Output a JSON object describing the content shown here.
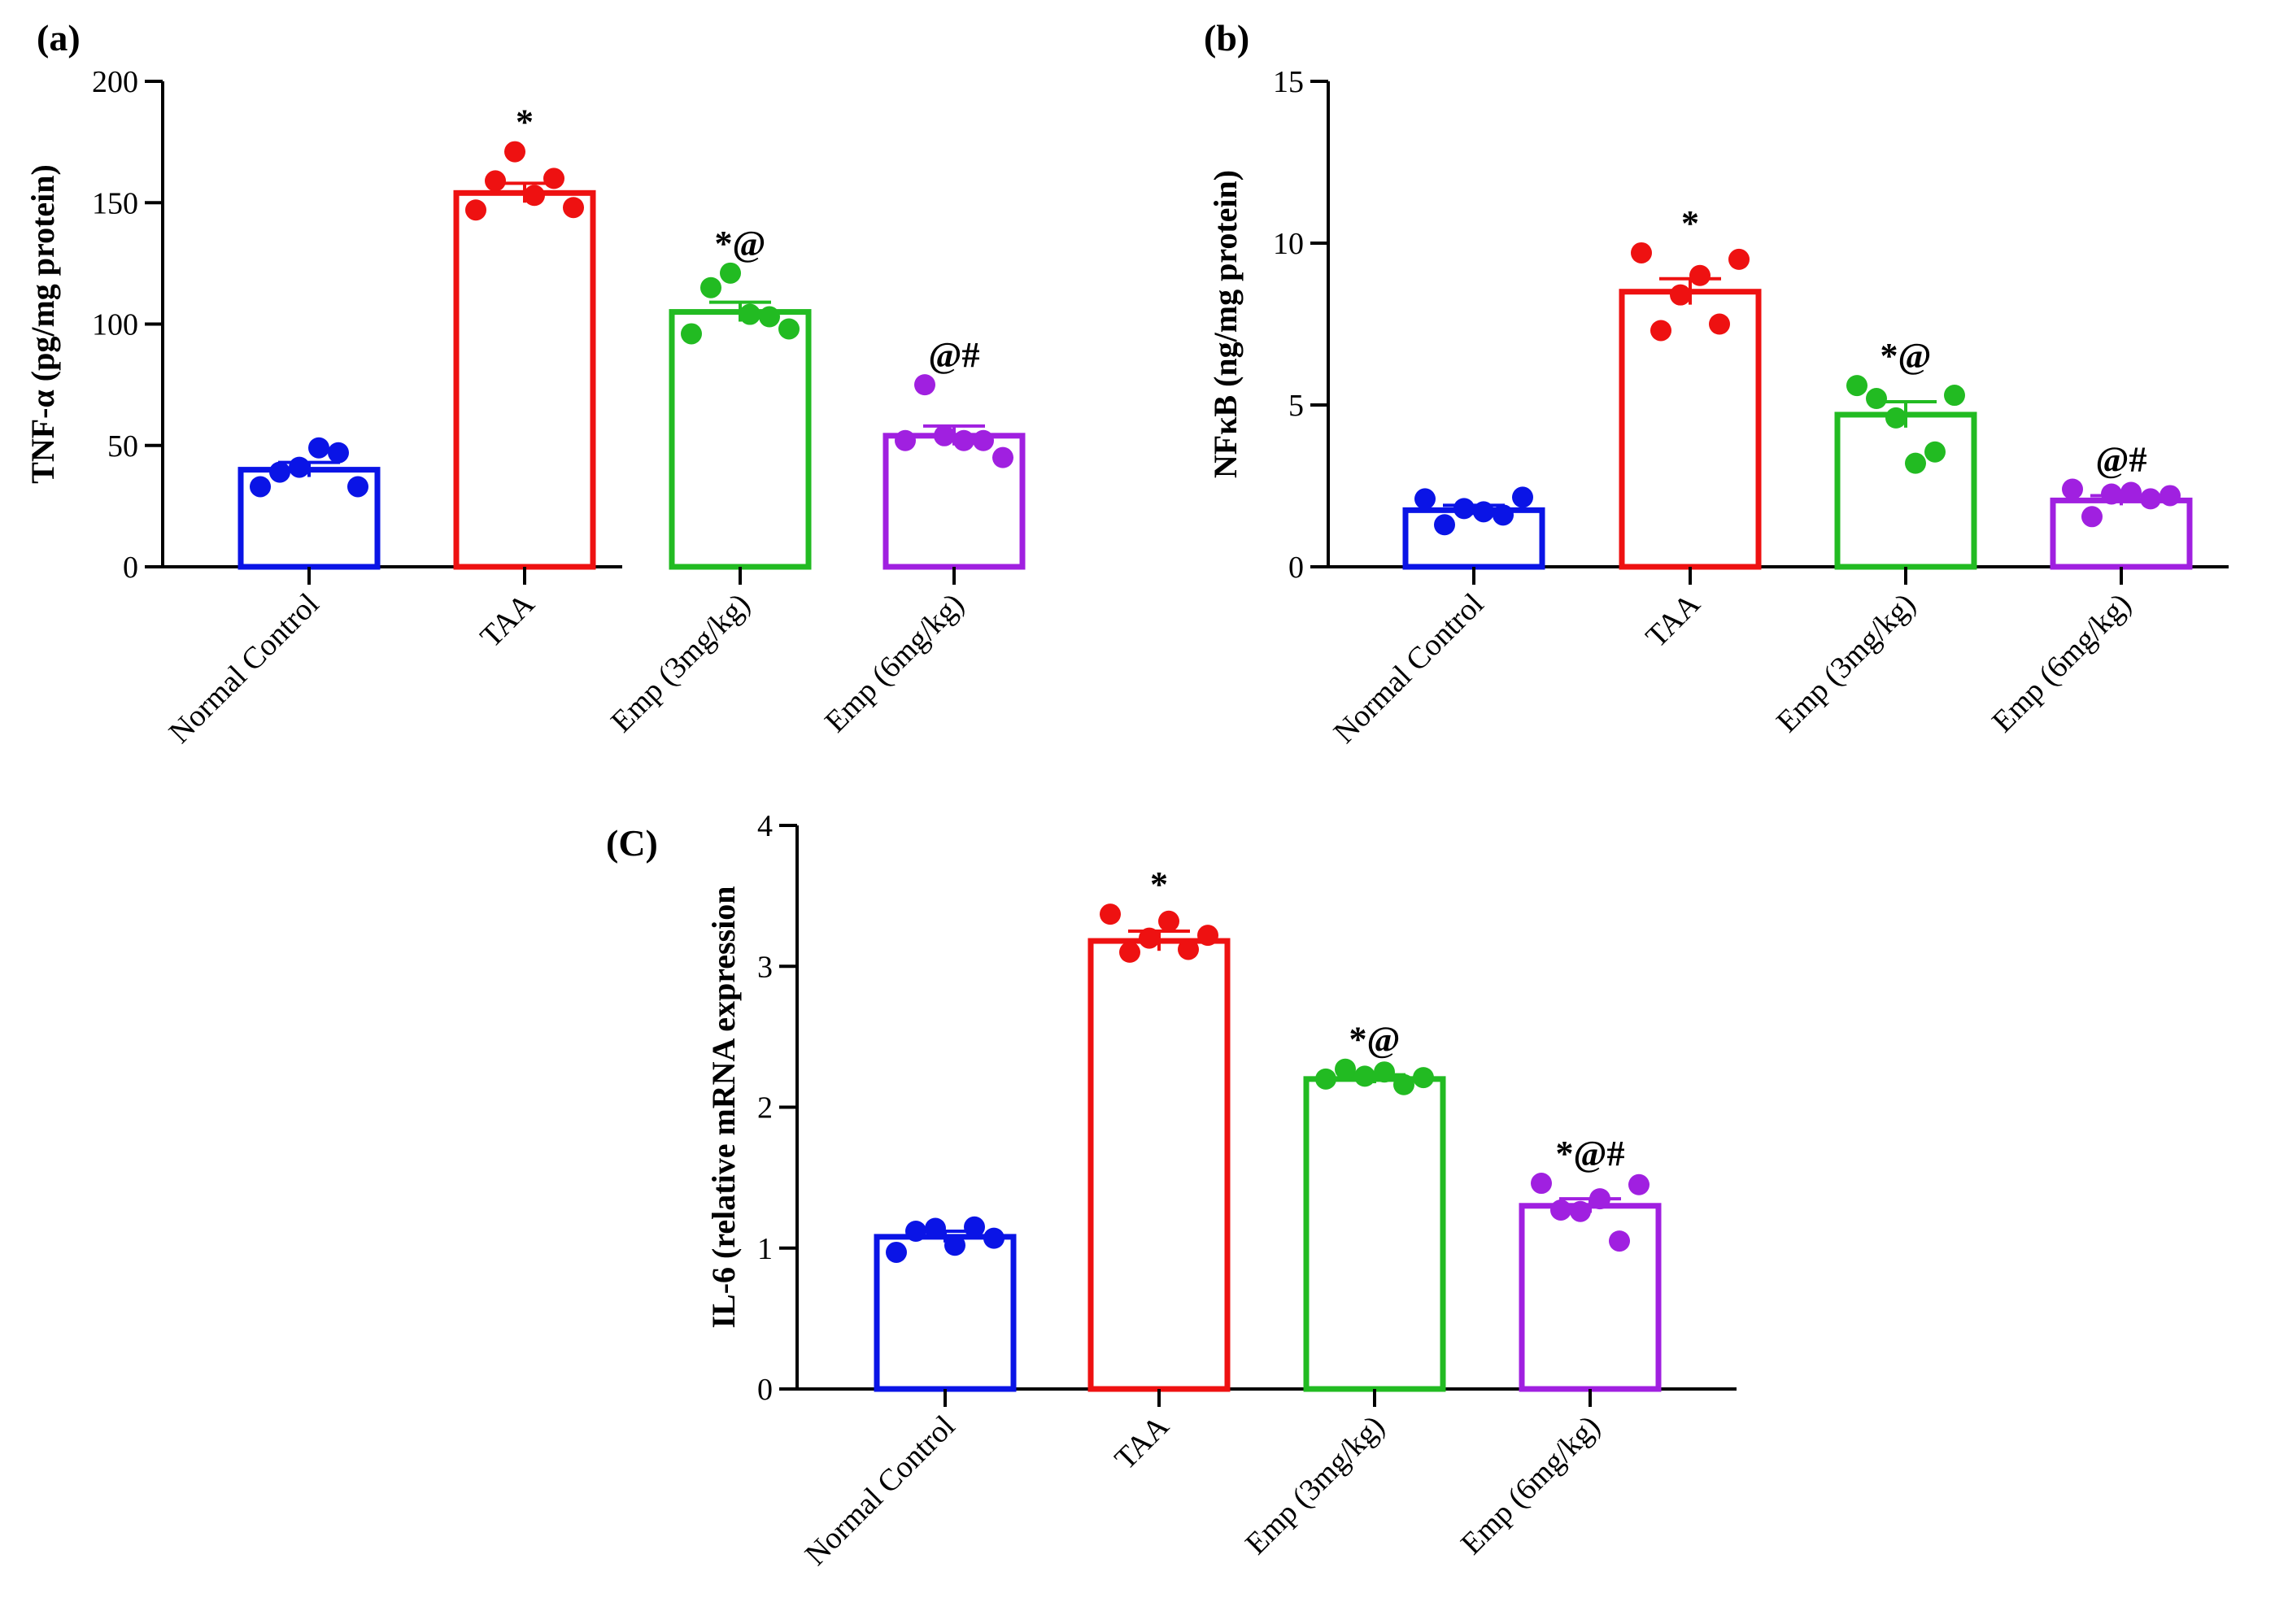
{
  "chart_data": [
    {
      "type": "bar",
      "panel_label": "(a)",
      "ylabel": "TNF-α (pg/mg protein)",
      "ylim": [
        0,
        200
      ],
      "yticks": [
        0,
        50,
        100,
        150,
        200
      ],
      "categories": [
        "Normal Control",
        "TAA",
        "Emp (3mg/kg)",
        "Emp (6mg/kg)"
      ],
      "colors": [
        "#0a14e6",
        "#ee1111",
        "#22bb22",
        "#a020e0"
      ],
      "values": [
        40,
        154,
        105,
        54
      ],
      "sem": [
        3,
        4,
        4,
        4
      ],
      "points": [
        [
          33,
          39,
          41,
          49,
          47,
          33
        ],
        [
          147,
          159,
          171,
          153,
          160,
          148
        ],
        [
          96,
          115,
          121,
          104,
          103,
          98
        ],
        [
          52,
          75,
          54,
          52,
          52,
          45
        ]
      ],
      "significance": [
        "",
        "*",
        "*@",
        "@#"
      ]
    },
    {
      "type": "bar",
      "panel_label": "(b)",
      "ylabel": "NFκB (ng/mg protein)",
      "ylim": [
        0,
        15
      ],
      "yticks": [
        0,
        5,
        10,
        15
      ],
      "categories": [
        "Normal Control",
        "TAA",
        "Emp (3mg/kg)",
        "Emp (6mg/kg)"
      ],
      "colors": [
        "#0a14e6",
        "#ee1111",
        "#22bb22",
        "#a020e0"
      ],
      "values": [
        1.75,
        8.5,
        4.7,
        2.05
      ],
      "sem": [
        0.15,
        0.4,
        0.4,
        0.15
      ],
      "points": [
        [
          2.1,
          1.3,
          1.8,
          1.7,
          1.6,
          2.15
        ],
        [
          9.7,
          7.3,
          8.4,
          9.0,
          7.5,
          9.5
        ],
        [
          5.6,
          5.2,
          4.6,
          3.2,
          3.55,
          5.3
        ],
        [
          2.4,
          1.55,
          2.25,
          2.3,
          2.1,
          2.2
        ]
      ],
      "significance": [
        "",
        "*",
        "*@",
        "@#"
      ]
    },
    {
      "type": "bar",
      "panel_label": "(C)",
      "ylabel": "IL-6 (relative mRNA expression",
      "ylim": [
        0,
        4
      ],
      "yticks": [
        0,
        1,
        2,
        3,
        4
      ],
      "categories": [
        "Normal Control",
        "TAA",
        "Emp (3mg/kg)",
        "Emp (6mg/kg)"
      ],
      "colors": [
        "#0a14e6",
        "#ee1111",
        "#22bb22",
        "#a020e0"
      ],
      "values": [
        1.08,
        3.18,
        2.2,
        1.3
      ],
      "sem": [
        0.04,
        0.07,
        0.03,
        0.05
      ],
      "points": [
        [
          0.97,
          1.12,
          1.14,
          1.02,
          1.15,
          1.07
        ],
        [
          3.37,
          3.1,
          3.2,
          3.32,
          3.12,
          3.22
        ],
        [
          2.2,
          2.27,
          2.22,
          2.25,
          2.16,
          2.21
        ],
        [
          1.46,
          1.27,
          1.26,
          1.35,
          1.05,
          1.45
        ]
      ],
      "significance": [
        "",
        "*",
        "*@",
        "*@#"
      ]
    }
  ]
}
